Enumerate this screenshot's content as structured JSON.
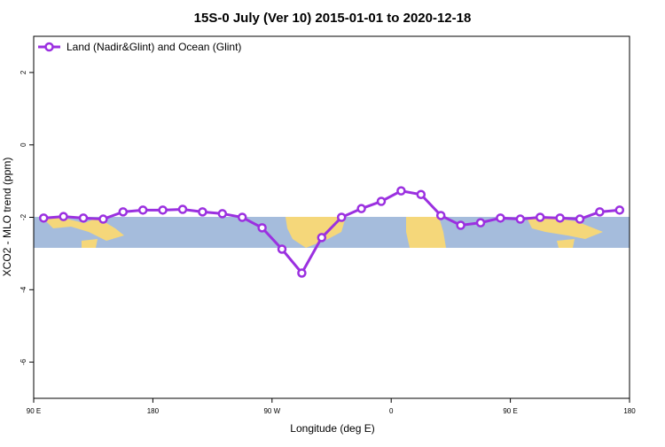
{
  "chart_data": {
    "type": "line",
    "title": "15S-0 July (Ver 10)   2015-01-01 to 2020-12-18",
    "x_label": "Longitude (deg E)",
    "y_label": "XCO2 - MLO trend (ppm)",
    "x": [
      97.5,
      112.5,
      127.5,
      142.5,
      157.5,
      172.5,
      187.5,
      202.5,
      217.5,
      232.5,
      247.5,
      262.5,
      277.5,
      292.5,
      307.5,
      322.5,
      337.5,
      352.5,
      367.5,
      382.5,
      397.5,
      412.5,
      427.5,
      442.5,
      457.5,
      472.5,
      487.5,
      502.5,
      517.5,
      532.5
    ],
    "series": [
      {
        "name": "Land (Nadir&Glint) and Ocean (Glint)",
        "color": "#9b30e0",
        "values": [
          -2.02,
          -1.98,
          -2.02,
          -2.05,
          -1.85,
          -1.8,
          -1.8,
          -1.78,
          -1.85,
          -1.9,
          -2.0,
          -2.29,
          -2.88,
          -3.54,
          -2.56,
          -2.0,
          -1.76,
          -1.56,
          -1.27,
          -1.37,
          -1.95,
          -2.22,
          -2.15,
          -2.02,
          -2.05,
          -2.0,
          -2.02,
          -2.05,
          -1.85,
          -1.8
        ]
      }
    ],
    "xlim": [
      90,
      540
    ],
    "xticks": [
      {
        "value": 90,
        "label": "90 E"
      },
      180,
      {
        "value": 270,
        "label": "90 W"
      },
      {
        "value": 360,
        "label": "0"
      },
      {
        "value": 450,
        "label": "90 E"
      },
      {
        "value": 540,
        "label": "180"
      }
    ],
    "ylim": [
      -7,
      3
    ],
    "yticks": [
      -6,
      -4,
      -2,
      0,
      2
    ],
    "legend": "top-left"
  }
}
